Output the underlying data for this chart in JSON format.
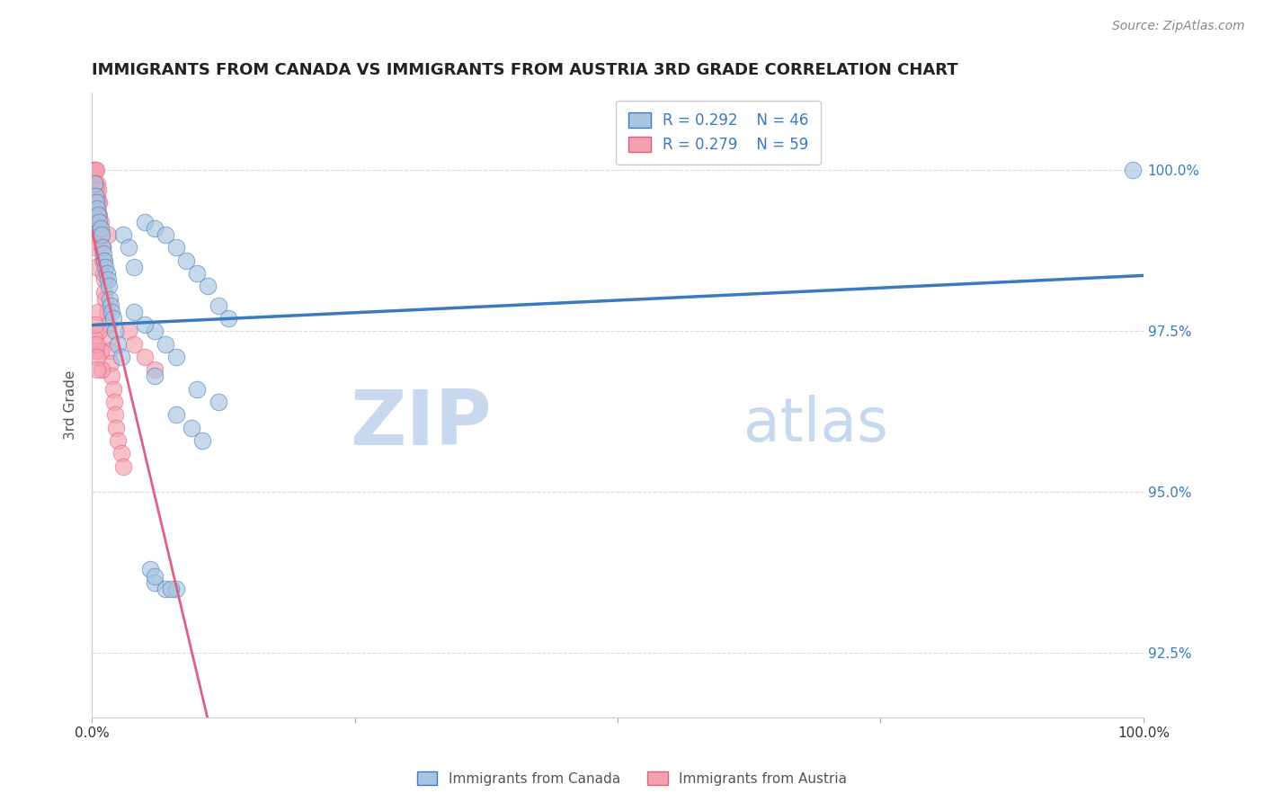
{
  "title": "IMMIGRANTS FROM CANADA VS IMMIGRANTS FROM AUSTRIA 3RD GRADE CORRELATION CHART",
  "source_text": "Source: ZipAtlas.com",
  "ylabel": "3rd Grade",
  "xmin": 0.0,
  "xmax": 1.0,
  "ymin": 91.5,
  "ymax": 101.2,
  "canada_R": 0.292,
  "canada_N": 46,
  "austria_R": 0.279,
  "austria_N": 59,
  "canada_color": "#a8c4e0",
  "austria_color": "#f4a0b0",
  "canada_line_color": "#3a7abf",
  "austria_line_color": "#e06080",
  "watermark_color": "#c8d8ee",
  "canada_x": [
    0.002,
    0.003,
    0.004,
    0.005,
    0.006,
    0.007,
    0.008,
    0.009,
    0.01,
    0.011,
    0.012,
    0.013,
    0.014,
    0.015,
    0.016,
    0.017,
    0.018,
    0.019,
    0.02,
    0.022,
    0.025,
    0.028,
    0.03,
    0.035,
    0.04,
    0.05,
    0.06,
    0.07,
    0.08,
    0.09,
    0.1,
    0.11,
    0.12,
    0.13,
    0.06,
    0.07,
    0.08,
    0.05,
    0.04,
    0.1,
    0.12,
    0.06,
    0.08,
    0.095,
    0.105,
    0.99
  ],
  "canada_y": [
    99.8,
    99.6,
    99.5,
    99.4,
    99.3,
    99.2,
    99.1,
    99.0,
    98.8,
    98.7,
    98.6,
    98.5,
    98.4,
    98.3,
    98.2,
    98.0,
    97.9,
    97.8,
    97.7,
    97.5,
    97.3,
    97.1,
    99.0,
    98.8,
    98.5,
    99.2,
    99.1,
    99.0,
    98.8,
    98.6,
    98.4,
    98.2,
    97.9,
    97.7,
    97.5,
    97.3,
    97.1,
    97.6,
    97.8,
    96.6,
    96.4,
    96.8,
    96.2,
    96.0,
    95.8,
    100.0
  ],
  "canada_x_outliers": [
    0.055,
    0.06,
    0.07,
    0.08,
    0.06,
    0.075
  ],
  "canada_y_outliers": [
    93.8,
    93.6,
    93.5,
    93.5,
    93.7,
    93.5
  ],
  "austria_x": [
    0.001,
    0.001,
    0.002,
    0.002,
    0.002,
    0.003,
    0.003,
    0.003,
    0.003,
    0.004,
    0.004,
    0.004,
    0.004,
    0.005,
    0.005,
    0.005,
    0.005,
    0.006,
    0.006,
    0.006,
    0.007,
    0.007,
    0.007,
    0.008,
    0.008,
    0.009,
    0.009,
    0.01,
    0.01,
    0.011,
    0.011,
    0.012,
    0.012,
    0.013,
    0.014,
    0.015,
    0.015,
    0.016,
    0.017,
    0.018,
    0.019,
    0.02,
    0.021,
    0.022,
    0.023,
    0.025,
    0.028,
    0.03,
    0.035,
    0.04,
    0.05,
    0.06,
    0.002,
    0.003,
    0.004,
    0.006,
    0.007,
    0.008,
    0.009
  ],
  "austria_y": [
    100.0,
    99.8,
    100.0,
    99.7,
    99.5,
    100.0,
    99.8,
    99.6,
    99.4,
    100.0,
    99.7,
    99.5,
    99.3,
    99.8,
    99.6,
    99.4,
    99.2,
    99.7,
    99.5,
    99.3,
    99.5,
    99.3,
    99.1,
    99.2,
    99.0,
    99.0,
    98.8,
    98.8,
    98.6,
    98.6,
    98.4,
    98.3,
    98.1,
    98.0,
    97.8,
    97.6,
    99.0,
    97.4,
    97.2,
    97.0,
    96.8,
    96.6,
    96.4,
    96.2,
    96.0,
    95.8,
    95.6,
    95.4,
    97.5,
    97.3,
    97.1,
    96.9,
    99.0,
    98.8,
    98.5,
    97.8,
    97.5,
    97.2,
    96.9
  ],
  "austria_x_outliers": [
    0.002,
    0.003,
    0.003,
    0.004,
    0.005,
    0.005
  ],
  "austria_y_outliers": [
    97.4,
    97.6,
    97.2,
    97.3,
    97.1,
    96.9
  ]
}
